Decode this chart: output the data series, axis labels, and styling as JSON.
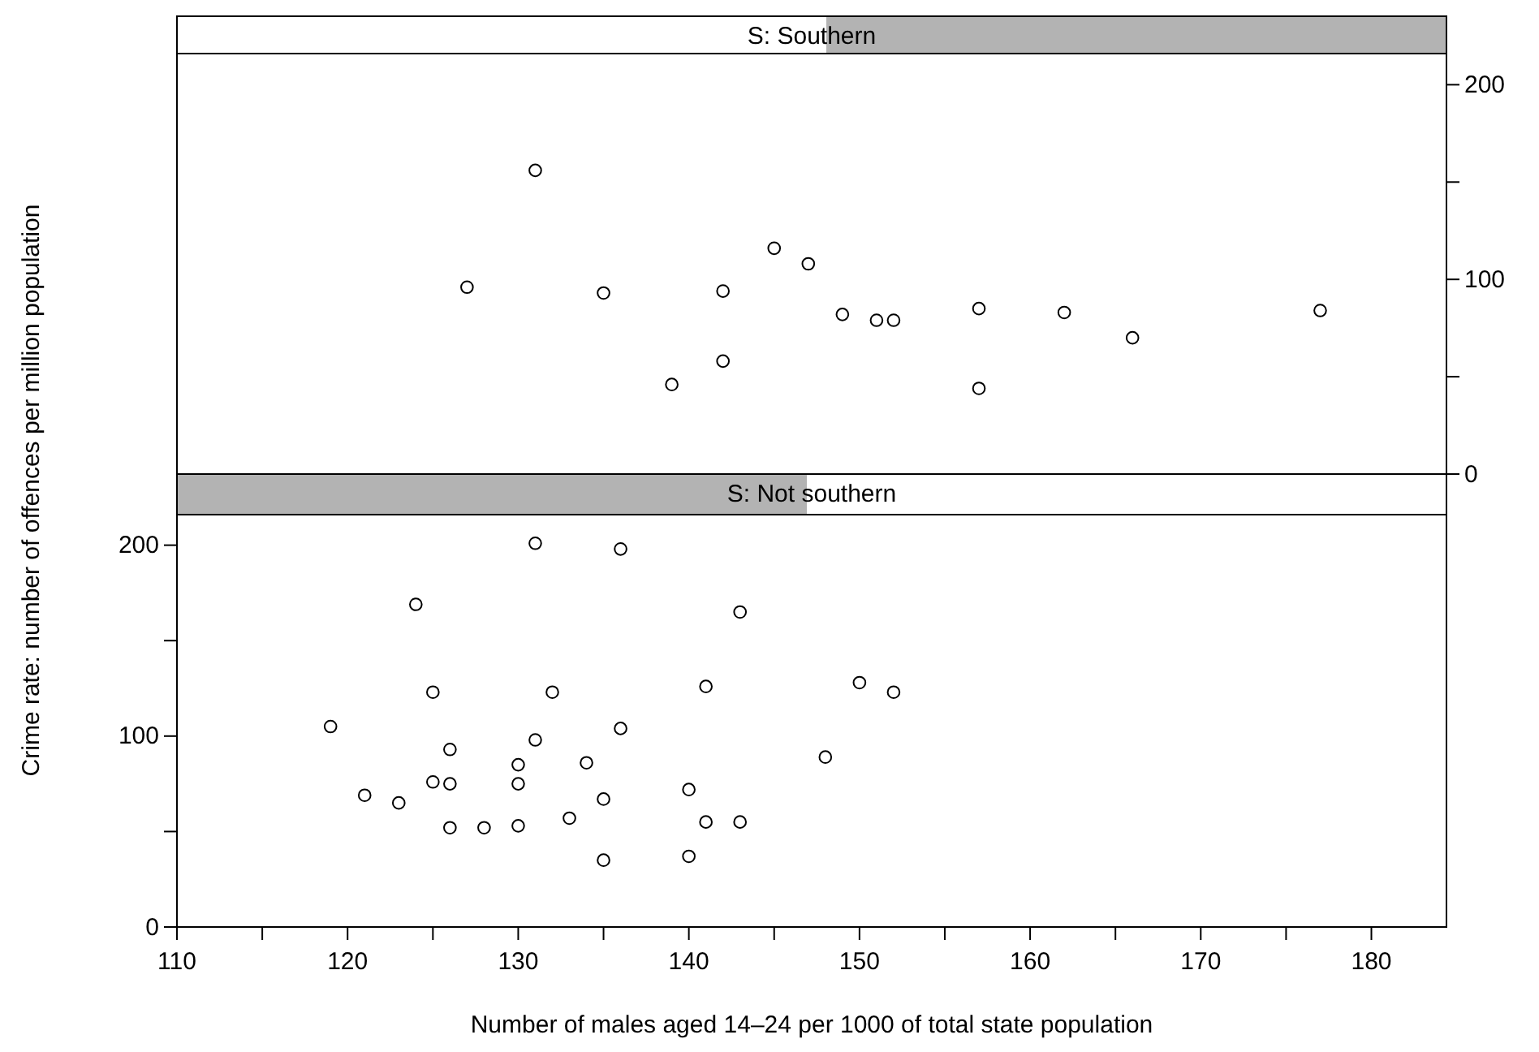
{
  "chart_data": [
    {
      "type": "scatter",
      "title": "S: Southern",
      "xlim": [
        110,
        184.4
      ],
      "y2lim": [
        0,
        216
      ],
      "y2ticks": [
        0,
        {
          "value": 50,
          "label": null
        },
        100,
        {
          "value": 150,
          "label": null
        },
        200
      ],
      "tick_labels": "y",
      "marker": "circle",
      "grid": false,
      "series": [
        {
          "color": "#000000",
          "axis": "y2",
          "x": [
            127,
            131,
            135,
            139,
            142,
            142,
            145,
            147,
            149,
            151,
            152,
            157,
            157,
            162,
            166,
            177
          ],
          "values": [
            96,
            156,
            93,
            46,
            94,
            58,
            116,
            108,
            82,
            79,
            79,
            85,
            44,
            83,
            70,
            84
          ]
        }
      ]
    },
    {
      "type": "scatter",
      "title": "S: Not southern",
      "xlabel": "Number of males aged 14–24 per 1000 of total state population",
      "ylabel": "Crime rate: number of offences per million population",
      "xlim": [
        110,
        184.4
      ],
      "xticks": [
        110,
        {
          "value": 115,
          "label": null
        },
        120,
        {
          "value": 125,
          "label": null
        },
        130,
        {
          "value": 135,
          "label": null
        },
        140,
        {
          "value": 145,
          "label": null
        },
        150,
        {
          "value": 155,
          "label": null
        },
        160,
        {
          "value": 165,
          "label": null
        },
        170,
        {
          "value": 175,
          "label": null
        },
        180
      ],
      "ylim": [
        0,
        216
      ],
      "yticks": [
        0,
        {
          "value": 50,
          "label": null
        },
        100,
        {
          "value": 150,
          "label": null
        },
        200
      ],
      "marker": "circle",
      "grid": false,
      "series": [
        {
          "color": "#000000",
          "x": [
            119,
            121,
            123,
            124,
            125,
            125,
            126,
            126,
            126,
            128,
            130,
            130,
            130,
            131,
            131,
            132,
            133,
            134,
            135,
            135,
            136,
            136,
            140,
            140,
            141,
            141,
            143,
            143,
            148,
            150,
            152
          ],
          "values": [
            105,
            69,
            65,
            169,
            123,
            76,
            93,
            75,
            52,
            52,
            85,
            75,
            53,
            201,
            98,
            123,
            57,
            86,
            67,
            35,
            198,
            104,
            72,
            37,
            126,
            55,
            165,
            55,
            89,
            128,
            123
          ]
        }
      ]
    }
  ]
}
